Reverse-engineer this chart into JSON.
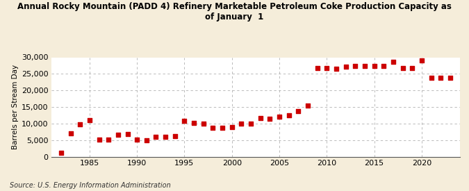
{
  "title": "Annual Rocky Mountain (PADD 4) Refinery Marketable Petroleum Coke Production Capacity as\nof January  1",
  "ylabel": "Barrels per Stream Day",
  "source": "Source: U.S. Energy Information Administration",
  "background_color": "#f5edda",
  "plot_bg_color": "#ffffff",
  "marker_color": "#cc0000",
  "grid_color": "#b0b0b0",
  "years": [
    1982,
    1983,
    1984,
    1985,
    1986,
    1987,
    1988,
    1989,
    1990,
    1991,
    1992,
    1993,
    1994,
    1995,
    1996,
    1997,
    1998,
    1999,
    2000,
    2001,
    2002,
    2003,
    2004,
    2005,
    2006,
    2007,
    2008,
    2009,
    2010,
    2011,
    2012,
    2013,
    2014,
    2015,
    2016,
    2017,
    2018,
    2019,
    2020,
    2021,
    2022,
    2023
  ],
  "values": [
    1200,
    7100,
    9800,
    11000,
    5100,
    5200,
    6600,
    6900,
    5200,
    5000,
    6000,
    6000,
    6100,
    10800,
    10200,
    10000,
    8700,
    8700,
    9000,
    10000,
    9900,
    11700,
    11400,
    12000,
    12400,
    13700,
    15500,
    26800,
    26700,
    26600,
    27200,
    27400,
    27400,
    27400,
    27400,
    28700,
    26700,
    26700,
    29000,
    23800,
    23800,
    23800
  ],
  "ylim": [
    0,
    30000
  ],
  "yticks": [
    0,
    5000,
    10000,
    15000,
    20000,
    25000,
    30000
  ],
  "xlim": [
    1981,
    2024
  ],
  "xticks": [
    1985,
    1990,
    1995,
    2000,
    2005,
    2010,
    2015,
    2020
  ]
}
